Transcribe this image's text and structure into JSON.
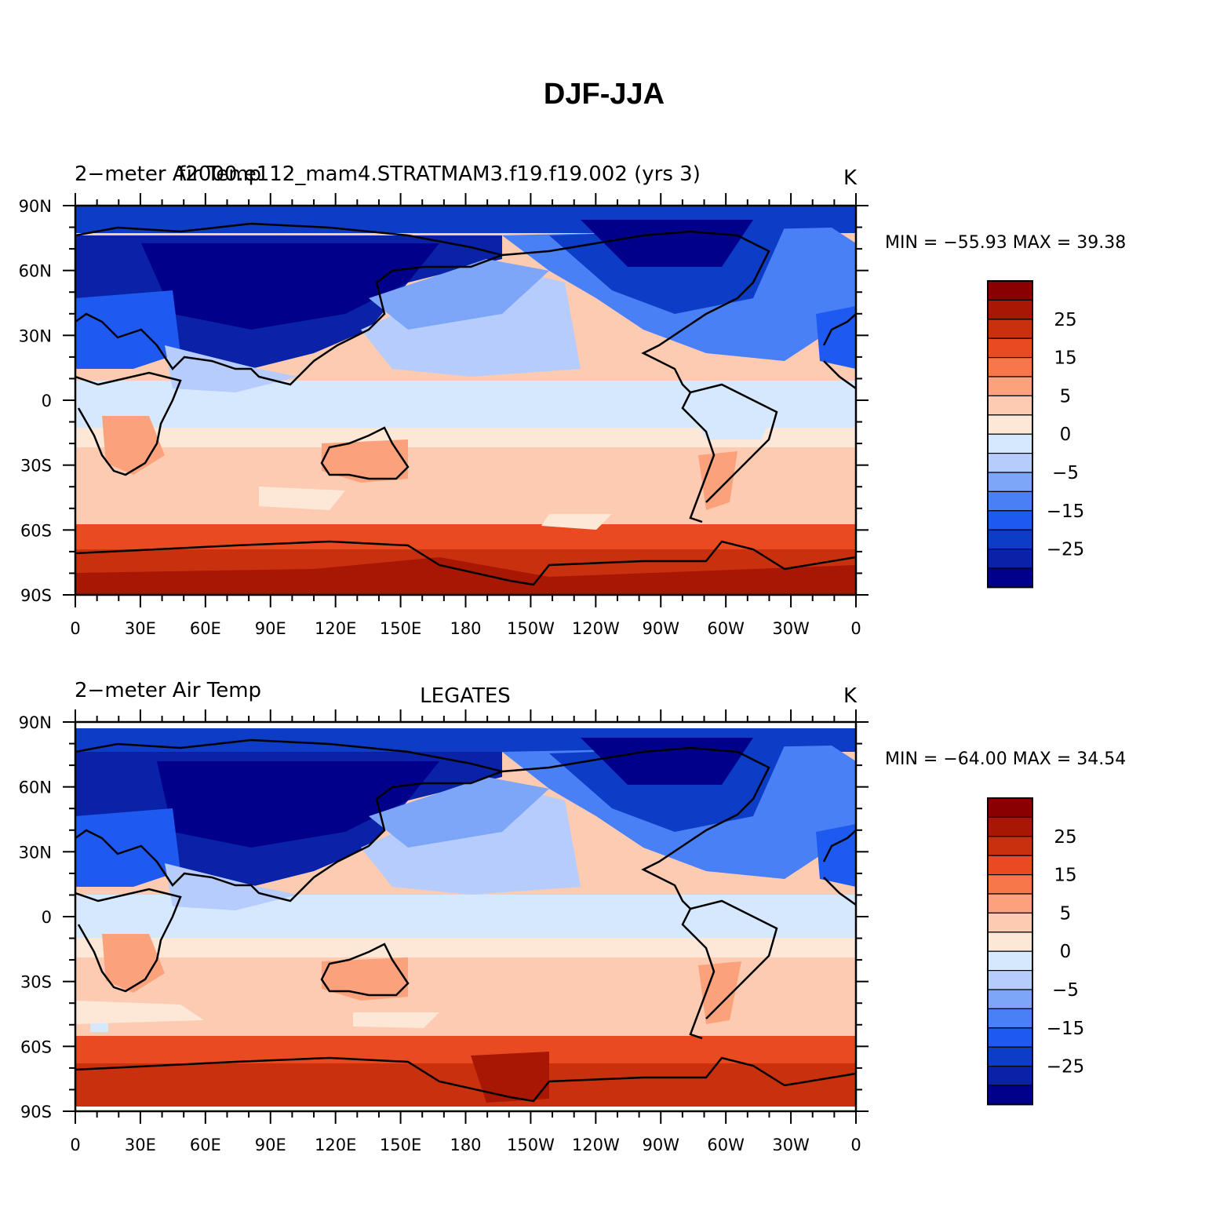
{
  "title": "DJF-JJA",
  "palette": [
    "#00008b",
    "#0a22a8",
    "#0d3cc6",
    "#1f5af0",
    "#4a80f5",
    "#7ea6f8",
    "#b5ccfc",
    "#d6e8fe",
    "#fde8d8",
    "#fccbb1",
    "#fba27c",
    "#f7764a",
    "#e94a21",
    "#c9300d",
    "#a81604",
    "#8a0000"
  ],
  "icon_names": [
    "coastline-outline",
    "colorbar"
  ],
  "panels": [
    {
      "left_title": "2−meter Air Temp",
      "center_title": "f2000.e112_mam4.STRATMAM3.f19.f19.002 (yrs 3)",
      "units": "K",
      "stats": "MIN = −55.93  MAX =   39.38",
      "min": -55.93,
      "max": 39.38
    },
    {
      "left_title": "2−meter Air Temp",
      "center_title": "LEGATES",
      "units": "K",
      "stats": "MIN = −64.00  MAX =   34.54",
      "min": -64.0,
      "max": 34.54
    }
  ],
  "colorbar": {
    "labels": [
      "25",
      "15",
      "5",
      "0",
      "−5",
      "−15",
      "−25"
    ]
  },
  "axes": {
    "lat_labels": [
      "90N",
      "60N",
      "30N",
      "0",
      "30S",
      "60S",
      "90S"
    ],
    "lon_labels": [
      "0",
      "30E",
      "60E",
      "90E",
      "120E",
      "150E",
      "180",
      "150W",
      "120W",
      "90W",
      "60W",
      "30W",
      "0"
    ]
  },
  "chart_data": {
    "type": "heatmap",
    "title": "DJF-JJA",
    "x_axis": "longitude",
    "y_axis": "latitude",
    "xlim": [
      0,
      360
    ],
    "ylim": [
      -90,
      90
    ],
    "units": "K",
    "series": [
      {
        "name": "f2000.e112_mam4.STRATMAM3.f19.f19.002 (yrs 3)",
        "min": -55.93,
        "max": 39.38
      },
      {
        "name": "LEGATES",
        "min": -64.0,
        "max": 34.54
      }
    ],
    "contour_levels": [
      -35,
      -30,
      -25,
      -20,
      -15,
      -10,
      -5,
      -2,
      0,
      2,
      5,
      10,
      15,
      20,
      25,
      30,
      35
    ]
  }
}
